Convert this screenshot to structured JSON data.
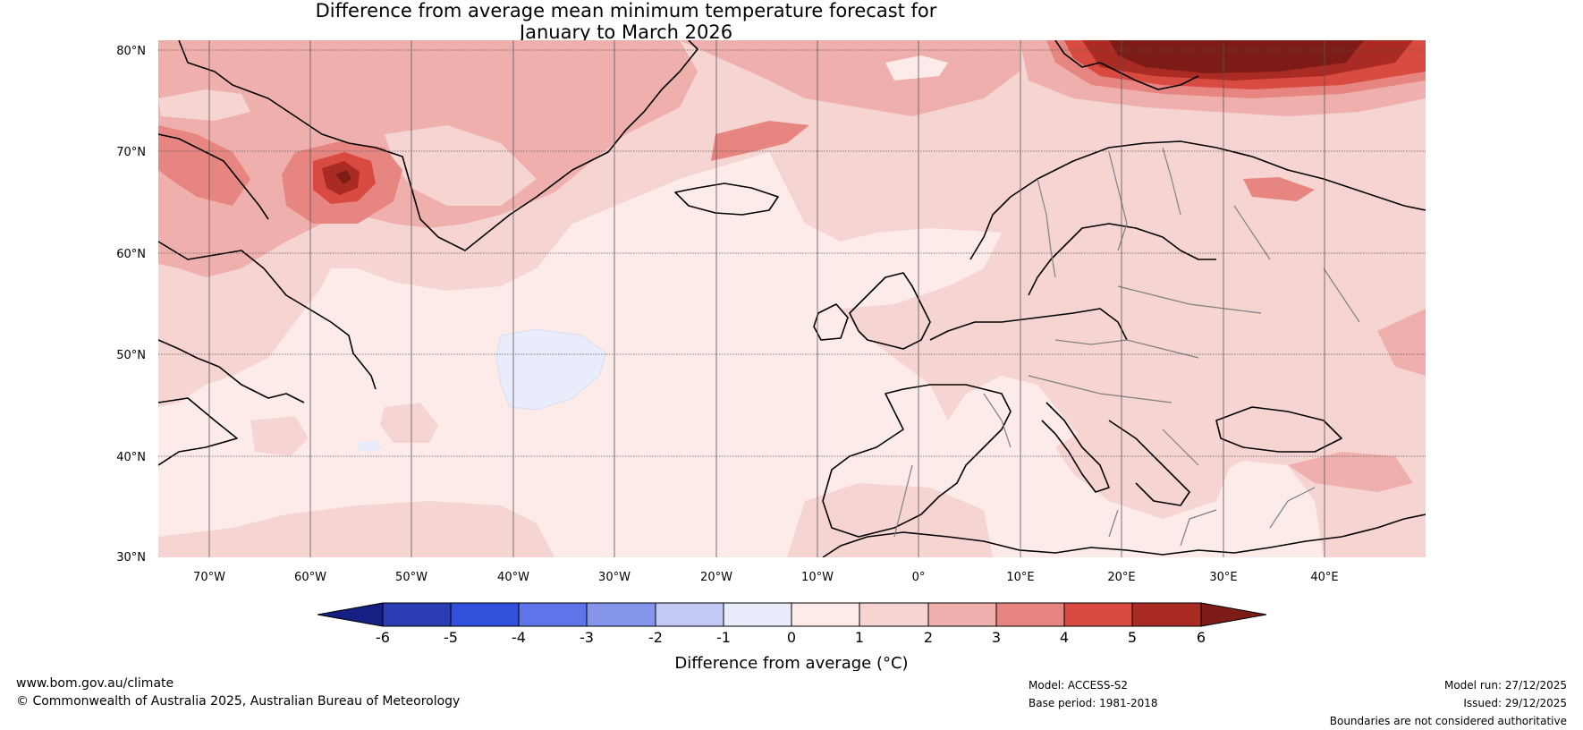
{
  "title": {
    "line1": "Difference from average mean minimum temperature forecast for",
    "line2": "January to March 2026"
  },
  "map": {
    "lat_labels": [
      "80°N",
      "70°N",
      "60°N",
      "50°N",
      "40°N",
      "30°N"
    ],
    "lon_labels": [
      "70°W",
      "60°W",
      "50°W",
      "40°W",
      "30°W",
      "20°W",
      "10°W",
      "0°",
      "10°E",
      "20°E",
      "30°E",
      "40°E"
    ],
    "lat_range": [
      30,
      81
    ],
    "lon_range": [
      -75,
      50
    ],
    "colors": {
      "ocean_base": "#fcebe8",
      "ocean_0_1": "#fcebe8",
      "anom_1_2": "#f6d4d2",
      "anom_2_3": "#efb0ad",
      "anom_3_4": "#e78580",
      "anom_4_5": "#d94a40",
      "anom_5_6": "#aa2a24",
      "anom_gt6": "#7d1c16",
      "neg_0_1": "#e8ecfb",
      "coast": "#000000",
      "border": "#808080",
      "grid": "#555555"
    }
  },
  "colorbar": {
    "ticks": [
      "-6",
      "-5",
      "-4",
      "-3",
      "-2",
      "-1",
      "0",
      "1",
      "2",
      "3",
      "4",
      "5",
      "6"
    ],
    "colors": [
      "#152083",
      "#2a3db3",
      "#3150dc",
      "#5f74e8",
      "#8595ec",
      "#c2c9f4",
      "#e8ecfb",
      "#fcebe8",
      "#f6d4d2",
      "#efb0ad",
      "#e78580",
      "#d94a40",
      "#aa2a24",
      "#7d1c16"
    ],
    "label": "Difference from average (°C)"
  },
  "footer": {
    "website": "www.bom.gov.au/climate",
    "copyright": "© Commonwealth of Australia 2025, Australian Bureau of Meteorology",
    "model": "Model: ACCESS-S2",
    "base_period": "Base period: 1981-2018",
    "model_run": "Model run: 27/12/2025",
    "issued": "Issued: 29/12/2025",
    "disclaimer": "Boundaries are not considered authoritative"
  }
}
